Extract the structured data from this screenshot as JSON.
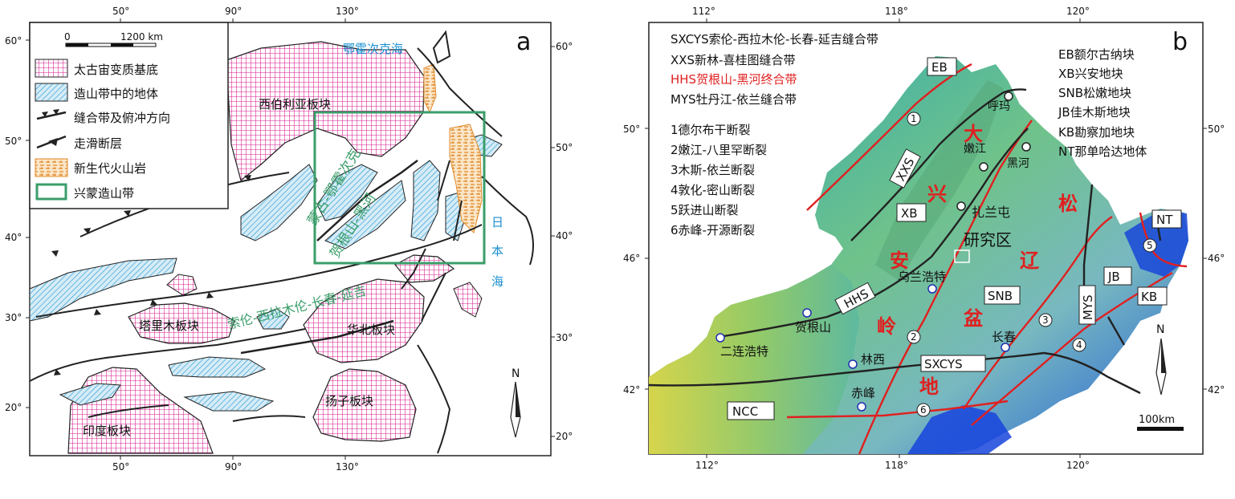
{
  "panel_a": {
    "letter": "a",
    "lon_ticks": [
      "50°",
      "90°",
      "130°"
    ],
    "lat_ticks_left": [
      "60°",
      "50°",
      "40°",
      "30°",
      "20°"
    ],
    "lat_ticks_right": [
      "60°",
      "50°",
      "40°",
      "30°",
      "20°"
    ],
    "scale": {
      "zero": "0",
      "value": "1200 km"
    },
    "legend": [
      {
        "label": "太古宙变质基底",
        "swatch": "archean"
      },
      {
        "label": "造山带中的地体",
        "swatch": "terrane"
      },
      {
        "label": "缝合带及俯冲方向",
        "swatch": "suture"
      },
      {
        "label": "走滑断层",
        "swatch": "strike-slip"
      },
      {
        "label": "新生代火山岩",
        "swatch": "volcanic"
      },
      {
        "label": "兴蒙造山带",
        "swatch": "box"
      }
    ],
    "labels": {
      "okhotsk": "鄂霍次克海",
      "siberia": "西伯利亚板块",
      "mongol_okhotsk": "蒙古-鄂霍次克",
      "hegen_heihe": "贺根山-黑河",
      "sxcy": "索伦-西拉木伦-长春-延吉",
      "tarim": "塔里木板块",
      "north_china": "华北板块",
      "yangtze": "扬子板块",
      "india": "印度板块",
      "japan_sea": "日本海",
      "north": "N"
    },
    "colors": {
      "archean": "#d6198c",
      "terrane": "#2a9bd0",
      "box": "#3b9e6a",
      "sea": "#1a8fd0",
      "orange": "#e08a2a"
    }
  },
  "panel_b": {
    "letter": "b",
    "lon_ticks_top": [
      "112°",
      "118°",
      "120°"
    ],
    "lon_ticks_bottom": [
      "112°",
      "118°",
      "120°"
    ],
    "lat_ticks_left": [
      "50°",
      "46°",
      "42°"
    ],
    "lat_ticks_right": [
      "50°",
      "46°",
      "42°"
    ],
    "legend_left": [
      {
        "text": "SXCYS索伦-西拉木伦-长春-延吉缝合带",
        "color": "#111111"
      },
      {
        "text": "XXS新林-喜桂图缝合带",
        "color": "#111111"
      },
      {
        "text": "HHS贺根山-黑河终合带",
        "color": "#e02020"
      },
      {
        "text": "MYS牡丹江-依兰缝合带",
        "color": "#111111"
      }
    ],
    "faults": [
      "1德尔布干断裂",
      "2嫩江-八里罕断裂",
      "3木斯-依兰断裂",
      "4敦化-密山断裂",
      "5跃进山断裂",
      "6赤峰-开源断裂"
    ],
    "legend_right": [
      "EB额尔古纳块",
      "XB兴安地块",
      "SNB松嫩地块",
      "JB佳木斯地块",
      "KB勘察加地块",
      "NT那单哈达地体"
    ],
    "cities": {
      "huma": "呼玛",
      "nenjiang": "嫩江",
      "heihe": "黑河",
      "zhalantun": "扎兰屯",
      "ulanhot": "乌兰浩特",
      "changchun": "长春",
      "hegenshan": "贺根山",
      "erenhot": "二连浩特",
      "linxi": "林西",
      "chifeng": "赤峰"
    },
    "units": {
      "EB": "EB",
      "XB": "XB",
      "SNB": "SNB",
      "JB": "JB",
      "KB": "KB",
      "NT": "NT",
      "NCC": "NCC",
      "XXS": "XXS",
      "HHS": "HHS",
      "SXCYS": "SXCYS",
      "MYS": "MYS"
    },
    "study_area": "研究区",
    "big_chars": {
      "da": "大",
      "xing": "兴",
      "an": "安",
      "ling": "岭",
      "song": "松",
      "liao": "辽",
      "pen": "盆",
      "di": "地"
    },
    "fault_numbers": [
      "1",
      "2",
      "3",
      "4",
      "5",
      "6"
    ],
    "scale": "100km",
    "north": "N",
    "colors": {
      "red": "#e02020",
      "sea": "#0a3fcf"
    }
  }
}
